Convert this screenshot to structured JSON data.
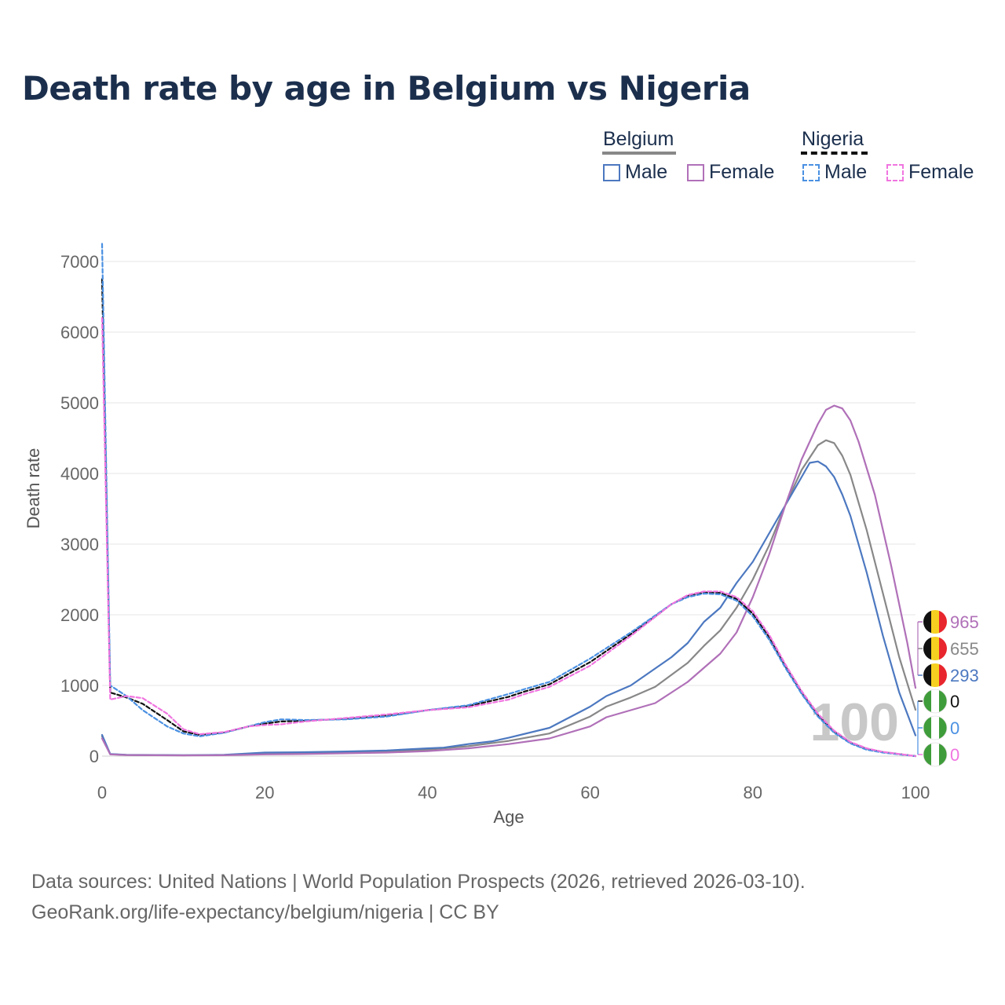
{
  "title": "Death rate by age in Belgium vs Nigeria",
  "legend": {
    "groups": [
      {
        "name": "Belgium",
        "underline_color": "#888888",
        "underline_style": "solid",
        "items": [
          {
            "label": "Male",
            "color": "#4c78c0",
            "style": "solid"
          },
          {
            "label": "Female",
            "color": "#b070b8",
            "style": "solid"
          }
        ]
      },
      {
        "name": "Nigeria",
        "underline_color": "#111111",
        "underline_style": "dashed",
        "items": [
          {
            "label": "Male",
            "color": "#4a90e2",
            "style": "dashed"
          },
          {
            "label": "Female",
            "color": "#f075e0",
            "style": "dashed"
          }
        ]
      }
    ]
  },
  "footer": {
    "line1": "Data sources: United Nations | World Population Prospects (2026, retrieved 2026-03-10).",
    "line2": "GeoRank.org/life-expectancy/belgium/nigeria | CC BY"
  },
  "watermark": "100",
  "chart_data": {
    "type": "line",
    "xlabel": "Age",
    "ylabel": "Death rate",
    "xlim": [
      0,
      100
    ],
    "ylim": [
      0,
      7000
    ],
    "x_ticks": [
      0,
      20,
      40,
      60,
      80,
      100
    ],
    "y_ticks": [
      0,
      1000,
      2000,
      3000,
      4000,
      5000,
      6000,
      7000
    ],
    "grid": true,
    "series": [
      {
        "name": "Belgium Male",
        "country": "Belgium",
        "sex": "Male",
        "color": "#4c78c0",
        "dash": "solid",
        "points": [
          [
            0,
            300
          ],
          [
            1,
            30
          ],
          [
            3,
            18
          ],
          [
            10,
            12
          ],
          [
            15,
            18
          ],
          [
            20,
            50
          ],
          [
            25,
            55
          ],
          [
            30,
            65
          ],
          [
            35,
            80
          ],
          [
            40,
            110
          ],
          [
            42,
            120
          ],
          [
            45,
            170
          ],
          [
            48,
            210
          ],
          [
            50,
            260
          ],
          [
            55,
            400
          ],
          [
            60,
            700
          ],
          [
            62,
            850
          ],
          [
            65,
            1000
          ],
          [
            70,
            1400
          ],
          [
            72,
            1600
          ],
          [
            74,
            1900
          ],
          [
            76,
            2100
          ],
          [
            78,
            2450
          ],
          [
            80,
            2750
          ],
          [
            82,
            3150
          ],
          [
            84,
            3550
          ],
          [
            86,
            3950
          ],
          [
            87,
            4150
          ],
          [
            88,
            4170
          ],
          [
            89,
            4100
          ],
          [
            90,
            3950
          ],
          [
            91,
            3700
          ],
          [
            92,
            3400
          ],
          [
            94,
            2600
          ],
          [
            96,
            1700
          ],
          [
            98,
            900
          ],
          [
            100,
            293
          ]
        ]
      },
      {
        "name": "Belgium Female",
        "country": "Belgium",
        "sex": "Female",
        "color": "#b070b8",
        "dash": "solid",
        "points": [
          [
            0,
            250
          ],
          [
            1,
            25
          ],
          [
            3,
            15
          ],
          [
            10,
            10
          ],
          [
            15,
            12
          ],
          [
            20,
            25
          ],
          [
            25,
            30
          ],
          [
            30,
            40
          ],
          [
            35,
            50
          ],
          [
            40,
            70
          ],
          [
            45,
            110
          ],
          [
            50,
            170
          ],
          [
            55,
            250
          ],
          [
            60,
            420
          ],
          [
            62,
            550
          ],
          [
            65,
            650
          ],
          [
            68,
            750
          ],
          [
            70,
            900
          ],
          [
            72,
            1050
          ],
          [
            74,
            1250
          ],
          [
            76,
            1450
          ],
          [
            78,
            1750
          ],
          [
            80,
            2250
          ],
          [
            82,
            2850
          ],
          [
            84,
            3550
          ],
          [
            86,
            4200
          ],
          [
            88,
            4700
          ],
          [
            89,
            4900
          ],
          [
            90,
            4960
          ],
          [
            91,
            4920
          ],
          [
            92,
            4750
          ],
          [
            93,
            4450
          ],
          [
            95,
            3700
          ],
          [
            97,
            2700
          ],
          [
            99,
            1600
          ],
          [
            100,
            965
          ]
        ]
      },
      {
        "name": "Belgium Total",
        "country": "Belgium",
        "sex": "Total",
        "color": "#888888",
        "dash": "solid",
        "points": [
          [
            0,
            280
          ],
          [
            1,
            28
          ],
          [
            3,
            16
          ],
          [
            10,
            11
          ],
          [
            15,
            15
          ],
          [
            20,
            38
          ],
          [
            25,
            42
          ],
          [
            30,
            52
          ],
          [
            35,
            65
          ],
          [
            40,
            90
          ],
          [
            45,
            140
          ],
          [
            50,
            215
          ],
          [
            55,
            320
          ],
          [
            60,
            560
          ],
          [
            62,
            700
          ],
          [
            65,
            830
          ],
          [
            68,
            980
          ],
          [
            70,
            1150
          ],
          [
            72,
            1320
          ],
          [
            74,
            1560
          ],
          [
            76,
            1780
          ],
          [
            78,
            2100
          ],
          [
            80,
            2500
          ],
          [
            82,
            2980
          ],
          [
            84,
            3550
          ],
          [
            86,
            4050
          ],
          [
            88,
            4400
          ],
          [
            89,
            4470
          ],
          [
            90,
            4430
          ],
          [
            91,
            4250
          ],
          [
            92,
            3980
          ],
          [
            94,
            3200
          ],
          [
            96,
            2300
          ],
          [
            98,
            1400
          ],
          [
            100,
            655
          ]
        ]
      },
      {
        "name": "Nigeria Male",
        "country": "Nigeria",
        "sex": "Male",
        "color": "#4a90e2",
        "dash": "dashed",
        "points": [
          [
            0,
            7250
          ],
          [
            1,
            1000
          ],
          [
            3,
            850
          ],
          [
            5,
            650
          ],
          [
            8,
            420
          ],
          [
            10,
            320
          ],
          [
            12,
            280
          ],
          [
            15,
            330
          ],
          [
            18,
            420
          ],
          [
            20,
            480
          ],
          [
            22,
            520
          ],
          [
            25,
            510
          ],
          [
            30,
            520
          ],
          [
            35,
            560
          ],
          [
            40,
            650
          ],
          [
            45,
            720
          ],
          [
            50,
            880
          ],
          [
            52,
            950
          ],
          [
            55,
            1050
          ],
          [
            60,
            1380
          ],
          [
            65,
            1750
          ],
          [
            70,
            2150
          ],
          [
            72,
            2250
          ],
          [
            74,
            2300
          ],
          [
            76,
            2290
          ],
          [
            78,
            2200
          ],
          [
            80,
            1980
          ],
          [
            82,
            1650
          ],
          [
            84,
            1250
          ],
          [
            86,
            880
          ],
          [
            88,
            560
          ],
          [
            90,
            330
          ],
          [
            92,
            180
          ],
          [
            94,
            90
          ],
          [
            96,
            50
          ],
          [
            98,
            25
          ],
          [
            100,
            0
          ]
        ]
      },
      {
        "name": "Nigeria Female",
        "country": "Nigeria",
        "sex": "Female",
        "color": "#f075e0",
        "dash": "dashed",
        "points": [
          [
            0,
            6200
          ],
          [
            1,
            800
          ],
          [
            3,
            850
          ],
          [
            5,
            820
          ],
          [
            8,
            600
          ],
          [
            10,
            380
          ],
          [
            12,
            310
          ],
          [
            15,
            340
          ],
          [
            18,
            420
          ],
          [
            20,
            440
          ],
          [
            22,
            450
          ],
          [
            25,
            490
          ],
          [
            30,
            540
          ],
          [
            35,
            590
          ],
          [
            40,
            650
          ],
          [
            45,
            690
          ],
          [
            50,
            800
          ],
          [
            52,
            880
          ],
          [
            55,
            980
          ],
          [
            60,
            1280
          ],
          [
            65,
            1700
          ],
          [
            70,
            2150
          ],
          [
            72,
            2280
          ],
          [
            74,
            2330
          ],
          [
            76,
            2330
          ],
          [
            78,
            2250
          ],
          [
            80,
            2050
          ],
          [
            82,
            1720
          ],
          [
            84,
            1300
          ],
          [
            86,
            920
          ],
          [
            88,
            600
          ],
          [
            90,
            360
          ],
          [
            92,
            200
          ],
          [
            94,
            110
          ],
          [
            96,
            60
          ],
          [
            98,
            30
          ],
          [
            100,
            0
          ]
        ]
      },
      {
        "name": "Nigeria Total",
        "country": "Nigeria",
        "sex": "Total",
        "color": "#111111",
        "dash": "dashed",
        "points": [
          [
            0,
            6750
          ],
          [
            1,
            900
          ],
          [
            3,
            830
          ],
          [
            5,
            740
          ],
          [
            8,
            510
          ],
          [
            10,
            350
          ],
          [
            12,
            300
          ],
          [
            15,
            335
          ],
          [
            18,
            420
          ],
          [
            20,
            460
          ],
          [
            22,
            490
          ],
          [
            25,
            500
          ],
          [
            30,
            530
          ],
          [
            35,
            575
          ],
          [
            40,
            650
          ],
          [
            45,
            705
          ],
          [
            50,
            840
          ],
          [
            52,
            915
          ],
          [
            55,
            1015
          ],
          [
            60,
            1330
          ],
          [
            65,
            1725
          ],
          [
            70,
            2150
          ],
          [
            72,
            2265
          ],
          [
            74,
            2315
          ],
          [
            76,
            2310
          ],
          [
            78,
            2225
          ],
          [
            80,
            2015
          ],
          [
            82,
            1685
          ],
          [
            84,
            1275
          ],
          [
            86,
            900
          ],
          [
            88,
            580
          ],
          [
            90,
            345
          ],
          [
            92,
            190
          ],
          [
            94,
            100
          ],
          [
            96,
            55
          ],
          [
            98,
            28
          ],
          [
            100,
            0
          ]
        ]
      }
    ],
    "end_labels": [
      {
        "country": "Belgium",
        "value": "965",
        "color": "#b070b8"
      },
      {
        "country": "Belgium",
        "value": "655",
        "color": "#888888"
      },
      {
        "country": "Belgium",
        "value": "293",
        "color": "#4c78c0"
      },
      {
        "country": "Nigeria",
        "value": "0",
        "color": "#111111"
      },
      {
        "country": "Nigeria",
        "value": "0",
        "color": "#4a90e2"
      },
      {
        "country": "Nigeria",
        "value": "0",
        "color": "#f075e0"
      }
    ]
  }
}
